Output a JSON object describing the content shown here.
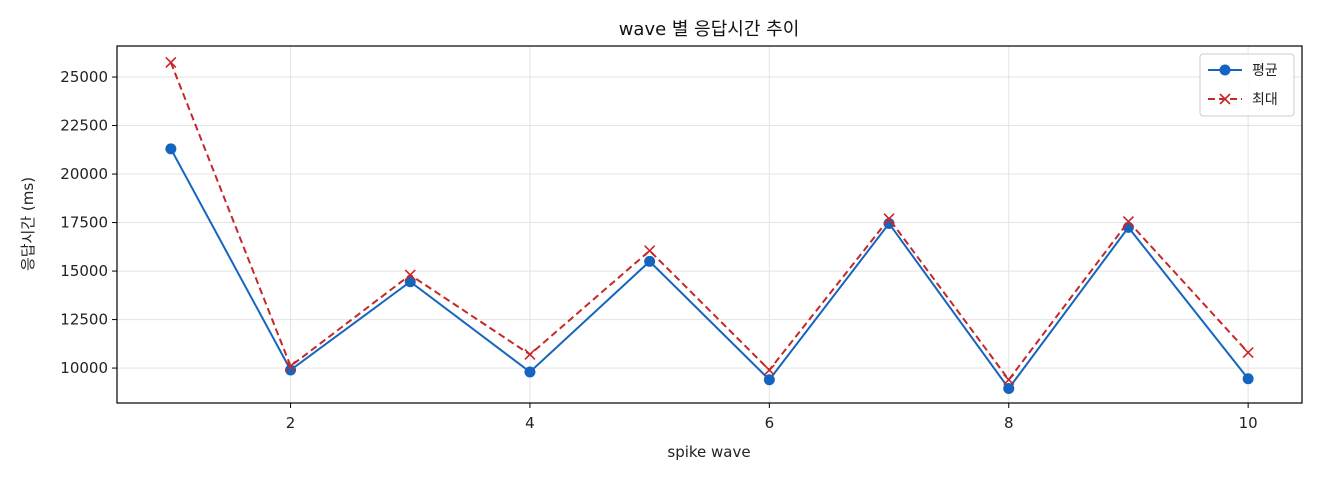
{
  "chart_data": {
    "type": "line",
    "title": "wave 별 응답시간 추이",
    "xlabel": "spike wave",
    "ylabel": "응답시간 (ms)",
    "x": [
      1,
      2,
      3,
      4,
      5,
      6,
      7,
      8,
      9,
      10
    ],
    "xticks": [
      2,
      4,
      6,
      8,
      10
    ],
    "yticks": [
      10000,
      12500,
      15000,
      17500,
      20000,
      22500,
      25000
    ],
    "xlim": [
      0.55,
      10.45
    ],
    "ylim": [
      8200,
      26600
    ],
    "grid": true,
    "legend_position": "top-right",
    "series": [
      {
        "name": "평균",
        "color": "#1565c0",
        "linestyle": "solid",
        "marker": "circle",
        "values": [
          21300,
          9900,
          14450,
          9800,
          15500,
          9400,
          17450,
          8950,
          17250,
          9450
        ]
      },
      {
        "name": "최대",
        "color": "#c62828",
        "linestyle": "dashed",
        "marker": "x",
        "values": [
          25750,
          10100,
          14800,
          10700,
          16050,
          9900,
          17700,
          9400,
          17550,
          10800
        ]
      }
    ]
  }
}
